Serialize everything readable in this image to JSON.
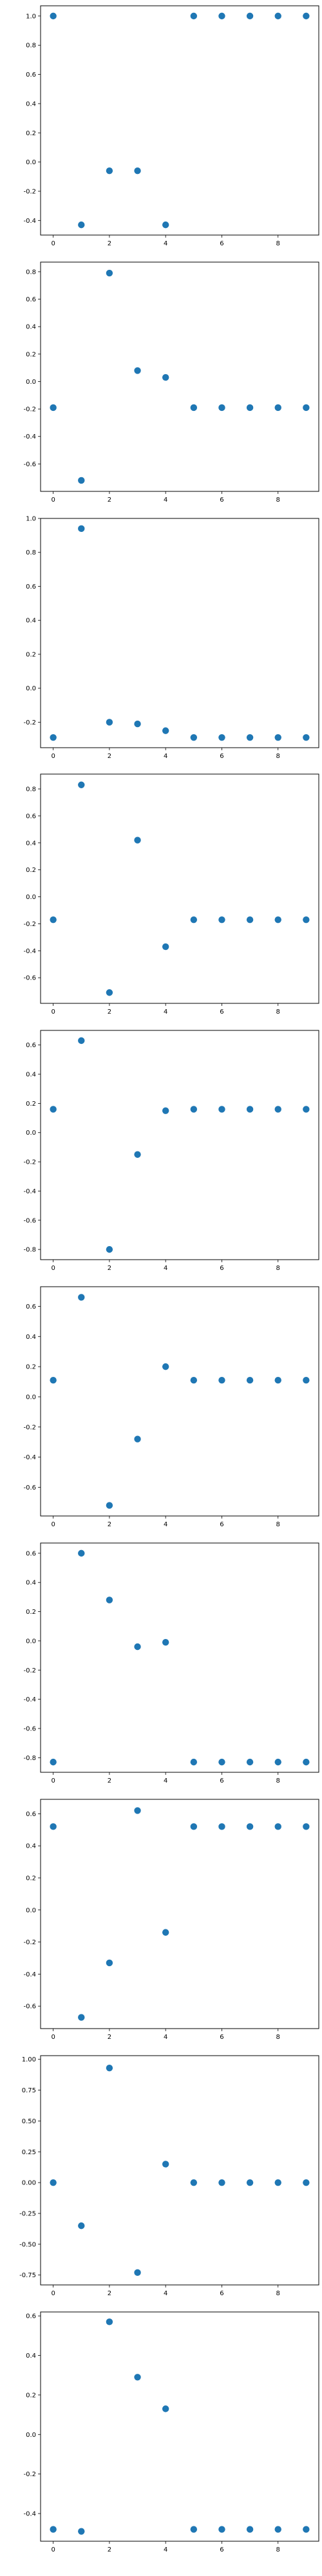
{
  "figure": {
    "marker_color": "#1f77b4",
    "background": "#ffffff"
  },
  "chart_data": [
    {
      "type": "scatter",
      "x": [
        0,
        1,
        2,
        3,
        4,
        5,
        6,
        7,
        8,
        9
      ],
      "y": [
        1.0,
        -0.43,
        -0.06,
        -0.06,
        -0.43,
        1.0,
        1.0,
        1.0,
        1.0,
        1.0
      ],
      "xlim": [
        -0.45,
        9.45
      ],
      "ylim": [
        -0.5,
        1.07
      ],
      "xticks": [
        "0",
        "2",
        "4",
        "6",
        "8"
      ],
      "yticks": [
        "1.0",
        "0.8",
        "0.6",
        "0.4",
        "0.2",
        "0.0",
        "-0.2",
        "-0.4"
      ],
      "grid": false
    },
    {
      "type": "scatter",
      "x": [
        0,
        1,
        2,
        3,
        4,
        5,
        6,
        7,
        8,
        9
      ],
      "y": [
        -0.19,
        -0.72,
        0.79,
        0.08,
        0.03,
        -0.19,
        -0.19,
        -0.19,
        -0.19,
        -0.19
      ],
      "xlim": [
        -0.45,
        9.45
      ],
      "ylim": [
        -0.8,
        0.87
      ],
      "xticks": [
        "0",
        "2",
        "4",
        "6",
        "8"
      ],
      "yticks": [
        "0.8",
        "0.6",
        "0.4",
        "0.2",
        "0.0",
        "-0.2",
        "-0.4",
        "-0.6"
      ],
      "grid": false
    },
    {
      "type": "scatter",
      "x": [
        0,
        1,
        2,
        3,
        4,
        5,
        6,
        7,
        8,
        9
      ],
      "y": [
        -0.29,
        0.94,
        -0.2,
        -0.21,
        -0.25,
        -0.29,
        -0.29,
        -0.29,
        -0.29,
        -0.29
      ],
      "xlim": [
        -0.45,
        9.45
      ],
      "ylim": [
        -0.35,
        1.0
      ],
      "xticks": [
        "0",
        "2",
        "4",
        "6",
        "8"
      ],
      "yticks": [
        "1.0",
        "0.8",
        "0.6",
        "0.4",
        "0.2",
        "0.0",
        "-0.2"
      ],
      "grid": false
    },
    {
      "type": "scatter",
      "x": [
        0,
        1,
        2,
        3,
        4,
        5,
        6,
        7,
        8,
        9
      ],
      "y": [
        -0.17,
        0.83,
        -0.71,
        0.42,
        -0.37,
        -0.17,
        -0.17,
        -0.17,
        -0.17,
        -0.17
      ],
      "xlim": [
        -0.45,
        9.45
      ],
      "ylim": [
        -0.79,
        0.91
      ],
      "xticks": [
        "0",
        "2",
        "4",
        "6",
        "8"
      ],
      "yticks": [
        "0.8",
        "0.6",
        "0.4",
        "0.2",
        "0.0",
        "-0.2",
        "-0.4",
        "-0.6"
      ],
      "grid": false
    },
    {
      "type": "scatter",
      "x": [
        0,
        1,
        2,
        3,
        4,
        5,
        6,
        7,
        8,
        9
      ],
      "y": [
        0.16,
        0.63,
        -0.8,
        -0.15,
        0.15,
        0.16,
        0.16,
        0.16,
        0.16,
        0.16
      ],
      "xlim": [
        -0.45,
        9.45
      ],
      "ylim": [
        -0.87,
        0.7
      ],
      "xticks": [
        "0",
        "2",
        "4",
        "6",
        "8"
      ],
      "yticks": [
        "0.6",
        "0.4",
        "0.2",
        "0.0",
        "-0.2",
        "-0.4",
        "-0.6",
        "-0.8"
      ],
      "grid": false
    },
    {
      "type": "scatter",
      "x": [
        0,
        1,
        2,
        3,
        4,
        5,
        6,
        7,
        8,
        9
      ],
      "y": [
        0.11,
        0.66,
        -0.72,
        -0.28,
        0.2,
        0.11,
        0.11,
        0.11,
        0.11,
        0.11
      ],
      "xlim": [
        -0.45,
        9.45
      ],
      "ylim": [
        -0.79,
        0.73
      ],
      "xticks": [
        "0",
        "2",
        "4",
        "6",
        "8"
      ],
      "yticks": [
        "0.6",
        "0.4",
        "0.2",
        "0.0",
        "-0.2",
        "-0.4",
        "-0.6"
      ],
      "grid": false
    },
    {
      "type": "scatter",
      "x": [
        0,
        1,
        2,
        3,
        4,
        5,
        6,
        7,
        8,
        9
      ],
      "y": [
        -0.83,
        0.6,
        0.28,
        -0.04,
        -0.01,
        -0.83,
        -0.83,
        -0.83,
        -0.83,
        -0.83
      ],
      "xlim": [
        -0.45,
        9.45
      ],
      "ylim": [
        -0.9,
        0.67
      ],
      "xticks": [
        "0",
        "2",
        "4",
        "6",
        "8"
      ],
      "yticks": [
        "0.6",
        "0.4",
        "0.2",
        "0.0",
        "-0.2",
        "-0.4",
        "-0.6",
        "-0.8"
      ],
      "grid": false
    },
    {
      "type": "scatter",
      "x": [
        0,
        1,
        2,
        3,
        4,
        5,
        6,
        7,
        8,
        9
      ],
      "y": [
        0.52,
        -0.67,
        -0.33,
        0.62,
        -0.14,
        0.52,
        0.52,
        0.52,
        0.52,
        0.52
      ],
      "xlim": [
        -0.45,
        9.45
      ],
      "ylim": [
        -0.74,
        0.69
      ],
      "xticks": [
        "0",
        "2",
        "4",
        "6",
        "8"
      ],
      "yticks": [
        "0.6",
        "0.4",
        "0.2",
        "0.0",
        "-0.2",
        "-0.4",
        "-0.6"
      ],
      "grid": false
    },
    {
      "type": "scatter",
      "x": [
        0,
        1,
        2,
        3,
        4,
        5,
        6,
        7,
        8,
        9
      ],
      "y": [
        0.0,
        -0.35,
        0.93,
        -0.73,
        0.15,
        0.0,
        0.0,
        0.0,
        0.0,
        0.0
      ],
      "xlim": [
        -0.45,
        9.45
      ],
      "ylim": [
        -0.83,
        1.03
      ],
      "xticks": [
        "0",
        "2",
        "4",
        "6",
        "8"
      ],
      "yticks": [
        "1.00",
        "0.75",
        "0.50",
        "0.25",
        "0.00",
        "-0.25",
        "-0.50",
        "-0.75"
      ],
      "grid": false
    },
    {
      "type": "scatter",
      "x": [
        0,
        1,
        2,
        3,
        4,
        5,
        6,
        7,
        8,
        9
      ],
      "y": [
        -0.48,
        -0.49,
        0.57,
        0.29,
        0.13,
        -0.48,
        -0.48,
        -0.48,
        -0.48,
        -0.48
      ],
      "xlim": [
        -0.45,
        9.45
      ],
      "ylim": [
        -0.54,
        0.62
      ],
      "xticks": [
        "0",
        "2",
        "4",
        "6",
        "8"
      ],
      "yticks": [
        "0.6",
        "0.4",
        "0.2",
        "0.0",
        "-0.2",
        "-0.4"
      ],
      "grid": false
    }
  ]
}
